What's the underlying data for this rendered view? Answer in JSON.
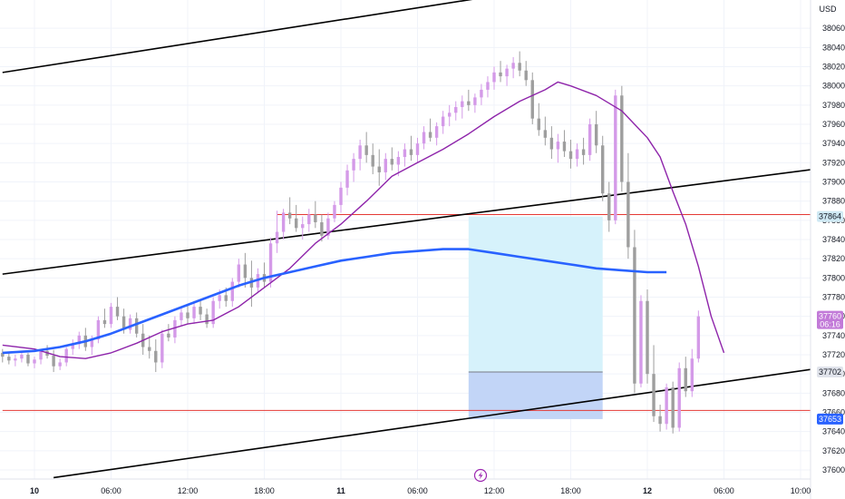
{
  "currency_label": "USD",
  "colors": {
    "up": "#d49ae8",
    "down": "#9e9e9e",
    "ema": "#8e24aa",
    "ma": "#2962ff",
    "channel": "#000000",
    "level": "#e53935",
    "target_zone": "#d6f2fb",
    "stop_zone": "#c2d5f7",
    "price_tag": "#c27ad8",
    "target_tag": "#cfe9f4",
    "entry_tag": "#e0e3eb",
    "stop_tag": "#2962ff"
  },
  "flash_icon": "lightning-icon",
  "chart_data": {
    "type": "candlestick",
    "ylim": [
      37590,
      38100
    ],
    "y_ticks": [
      37600,
      37620,
      37640,
      37660,
      37680,
      37700,
      37720,
      37740,
      37760,
      37780,
      37800,
      37820,
      37840,
      37860,
      37880,
      37900,
      37920,
      37940,
      37960,
      37980,
      38000,
      38020,
      38040,
      38060
    ],
    "x_ticks": [
      "10",
      "06:00",
      "12:00",
      "18:00",
      "11",
      "06:00",
      "12:00",
      "18:00",
      "12",
      "06:00",
      "10:00"
    ],
    "x_tick_hours": [
      0,
      6,
      12,
      18,
      24,
      30,
      36,
      42,
      48,
      54,
      60
    ],
    "x_tick_bold": [
      true,
      false,
      false,
      false,
      true,
      false,
      false,
      false,
      true,
      false,
      false
    ],
    "xlim": [
      -2.5,
      61.5
    ],
    "ohlc": [
      [
        37722,
        37726,
        37712,
        37718
      ],
      [
        37718,
        37722,
        37710,
        37714
      ],
      [
        37714,
        37720,
        37708,
        37716
      ],
      [
        37716,
        37724,
        37712,
        37720
      ],
      [
        37720,
        37722,
        37708,
        37711
      ],
      [
        37711,
        37718,
        37706,
        37715
      ],
      [
        37715,
        37726,
        37710,
        37724
      ],
      [
        37724,
        37730,
        37716,
        37719
      ],
      [
        37719,
        37725,
        37702,
        37708
      ],
      [
        37708,
        37716,
        37704,
        37712
      ],
      [
        37712,
        37728,
        37708,
        37726
      ],
      [
        37726,
        37736,
        37720,
        37731
      ],
      [
        37731,
        37744,
        37726,
        37740
      ],
      [
        37740,
        37748,
        37724,
        37728
      ],
      [
        37728,
        37740,
        37720,
        37736
      ],
      [
        37736,
        37760,
        37732,
        37756
      ],
      [
        37756,
        37768,
        37748,
        37752
      ],
      [
        37752,
        37774,
        37748,
        37770
      ],
      [
        37770,
        37780,
        37756,
        37760
      ],
      [
        37760,
        37768,
        37742,
        37746
      ],
      [
        37746,
        37762,
        37742,
        37758
      ],
      [
        37758,
        37764,
        37738,
        37742
      ],
      [
        37742,
        37752,
        37720,
        37728
      ],
      [
        37728,
        37740,
        37716,
        37724
      ],
      [
        37724,
        37736,
        37702,
        37712
      ],
      [
        37712,
        37746,
        37706,
        37742
      ],
      [
        37742,
        37752,
        37734,
        37738
      ],
      [
        37738,
        37760,
        37732,
        37756
      ],
      [
        37756,
        37770,
        37750,
        37764
      ],
      [
        37764,
        37772,
        37752,
        37758
      ],
      [
        37758,
        37776,
        37752,
        37770
      ],
      [
        37770,
        37778,
        37756,
        37762
      ],
      [
        37762,
        37768,
        37748,
        37752
      ],
      [
        37752,
        37780,
        37748,
        37776
      ],
      [
        37776,
        37788,
        37768,
        37782
      ],
      [
        37782,
        37790,
        37770,
        37776
      ],
      [
        37776,
        37800,
        37770,
        37796
      ],
      [
        37796,
        37820,
        37790,
        37814
      ],
      [
        37814,
        37826,
        37790,
        37800
      ],
      [
        37800,
        37818,
        37770,
        37790
      ],
      [
        37790,
        37810,
        37784,
        37804
      ],
      [
        37804,
        37816,
        37790,
        37796
      ],
      [
        37796,
        37842,
        37790,
        37836
      ],
      [
        37836,
        37870,
        37826,
        37848
      ],
      [
        37848,
        37872,
        37840,
        37868
      ],
      [
        37868,
        37884,
        37856,
        37862
      ],
      [
        37862,
        37876,
        37848,
        37852
      ],
      [
        37852,
        37864,
        37840,
        37856
      ],
      [
        37856,
        37872,
        37848,
        37866
      ],
      [
        37866,
        37880,
        37852,
        37858
      ],
      [
        37858,
        37866,
        37838,
        37844
      ],
      [
        37844,
        37868,
        37840,
        37862
      ],
      [
        37862,
        37880,
        37858,
        37876
      ],
      [
        37876,
        37900,
        37868,
        37894
      ],
      [
        37894,
        37918,
        37886,
        37912
      ],
      [
        37912,
        37930,
        37900,
        37924
      ],
      [
        37924,
        37944,
        37912,
        37938
      ],
      [
        37938,
        37952,
        37920,
        37928
      ],
      [
        37928,
        37940,
        37908,
        37916
      ],
      [
        37916,
        37934,
        37896,
        37910
      ],
      [
        37910,
        37930,
        37902,
        37924
      ],
      [
        37924,
        37936,
        37912,
        37918
      ],
      [
        37918,
        37932,
        37906,
        37926
      ],
      [
        37926,
        37940,
        37916,
        37934
      ],
      [
        37934,
        37948,
        37922,
        37928
      ],
      [
        37928,
        37946,
        37920,
        37940
      ],
      [
        37940,
        37958,
        37934,
        37952
      ],
      [
        37952,
        37966,
        37942,
        37946
      ],
      [
        37946,
        37962,
        37938,
        37958
      ],
      [
        37958,
        37974,
        37950,
        37968
      ],
      [
        37968,
        37980,
        37958,
        37972
      ],
      [
        37972,
        37984,
        37964,
        37978
      ],
      [
        37978,
        37990,
        37966,
        37984
      ],
      [
        37984,
        37996,
        37974,
        37980
      ],
      [
        37980,
        37992,
        37972,
        37988
      ],
      [
        37988,
        38002,
        37980,
        37996
      ],
      [
        37996,
        38010,
        37988,
        38004
      ],
      [
        38004,
        38020,
        37996,
        38014
      ],
      [
        38014,
        38026,
        38004,
        38010
      ],
      [
        38010,
        38022,
        38000,
        38018
      ],
      [
        38018,
        38030,
        38008,
        38024
      ],
      [
        38024,
        38036,
        38010,
        38016
      ],
      [
        38016,
        38026,
        38000,
        38006
      ],
      [
        38006,
        38014,
        37960,
        37966
      ],
      [
        37966,
        37982,
        37948,
        37954
      ],
      [
        37954,
        37968,
        37938,
        37946
      ],
      [
        37946,
        37958,
        37924,
        37934
      ],
      [
        37934,
        37950,
        37920,
        37942
      ],
      [
        37942,
        37954,
        37926,
        37932
      ],
      [
        37932,
        37944,
        37914,
        37924
      ],
      [
        37924,
        37940,
        37916,
        37934
      ],
      [
        37934,
        37946,
        37918,
        37928
      ],
      [
        37928,
        37966,
        37922,
        37960
      ],
      [
        37960,
        37974,
        37930,
        37938
      ],
      [
        37938,
        37948,
        37880,
        37888
      ],
      [
        37888,
        37900,
        37848,
        37860
      ],
      [
        37860,
        37996,
        37856,
        37990
      ],
      [
        37990,
        38000,
        37890,
        37900
      ],
      [
        37900,
        37930,
        37820,
        37832
      ],
      [
        37832,
        37850,
        37680,
        37690
      ],
      [
        37690,
        37782,
        37686,
        37776
      ],
      [
        37776,
        37788,
        37690,
        37700
      ],
      [
        37700,
        37730,
        37650,
        37656
      ],
      [
        37656,
        37668,
        37640,
        37648
      ],
      [
        37648,
        37690,
        37642,
        37686
      ],
      [
        37686,
        37692,
        37638,
        37644
      ],
      [
        37644,
        37712,
        37640,
        37706
      ],
      [
        37706,
        37718,
        37676,
        37682
      ],
      [
        37682,
        37726,
        37676,
        37716
      ],
      [
        37716,
        37766,
        37712,
        37760
      ]
    ],
    "series": [
      {
        "name": "",
        "kind": "ema",
        "points": [
          [
            -2.5,
            37730
          ],
          [
            0,
            37726
          ],
          [
            2,
            37718
          ],
          [
            4,
            37716
          ],
          [
            6,
            37722
          ],
          [
            8,
            37732
          ],
          [
            10,
            37744
          ],
          [
            12,
            37752
          ],
          [
            14,
            37756
          ],
          [
            16,
            37770
          ],
          [
            18,
            37790
          ],
          [
            20,
            37810
          ],
          [
            22,
            37836
          ],
          [
            24,
            37856
          ],
          [
            26,
            37880
          ],
          [
            28,
            37906
          ],
          [
            30,
            37920
          ],
          [
            32,
            37934
          ],
          [
            34,
            37950
          ],
          [
            36,
            37968
          ],
          [
            38,
            37984
          ],
          [
            40,
            37996
          ],
          [
            41,
            38004
          ],
          [
            42,
            38000
          ],
          [
            44,
            37990
          ],
          [
            46,
            37974
          ],
          [
            47,
            37960
          ],
          [
            48,
            37946
          ],
          [
            49,
            37926
          ],
          [
            50,
            37890
          ],
          [
            51,
            37856
          ],
          [
            52,
            37812
          ],
          [
            53,
            37760
          ],
          [
            54,
            37722
          ]
        ]
      },
      {
        "name": "",
        "kind": "ma",
        "points": [
          [
            -2.5,
            37722
          ],
          [
            0,
            37724
          ],
          [
            2,
            37728
          ],
          [
            4,
            37734
          ],
          [
            6,
            37742
          ],
          [
            8,
            37752
          ],
          [
            10,
            37762
          ],
          [
            12,
            37772
          ],
          [
            14,
            37782
          ],
          [
            16,
            37792
          ],
          [
            18,
            37800
          ],
          [
            20,
            37806
          ],
          [
            22,
            37812
          ],
          [
            24,
            37818
          ],
          [
            26,
            37822
          ],
          [
            28,
            37826
          ],
          [
            30,
            37828
          ],
          [
            32,
            37830
          ],
          [
            34,
            37830
          ],
          [
            36,
            37826
          ],
          [
            38,
            37822
          ],
          [
            40,
            37818
          ],
          [
            42,
            37814
          ],
          [
            44,
            37810
          ],
          [
            46,
            37808
          ],
          [
            48,
            37806
          ],
          [
            49.5,
            37806
          ]
        ]
      }
    ],
    "levels": [
      {
        "name": "",
        "price": 37866,
        "from_hour": 19,
        "to_hour": 61
      },
      {
        "name": "",
        "price": 37662,
        "from_hour": -2.5,
        "to_hour": 61.5
      }
    ],
    "channel_lines": [
      [
        [
          -2.5,
          38014
        ],
        [
          40,
          38102
        ]
      ],
      [
        [
          -2.5,
          37804
        ],
        [
          61.5,
          37914
        ]
      ],
      [
        [
          1.5,
          37592
        ],
        [
          61.5,
          37706
        ]
      ]
    ],
    "position": {
      "start_hour": 34,
      "end_hour": 44.5,
      "entry": 37702,
      "target": 37864,
      "stop": 37653
    },
    "price_tags": [
      {
        "label": "37864",
        "price": 37864,
        "kind": "target"
      },
      {
        "label": "37760",
        "sub_label": "06:16",
        "price": 37760,
        "kind": "last"
      },
      {
        "label": "37702",
        "price": 37702,
        "kind": "entry"
      },
      {
        "label": "37653",
        "price": 37653,
        "kind": "stop"
      }
    ]
  }
}
